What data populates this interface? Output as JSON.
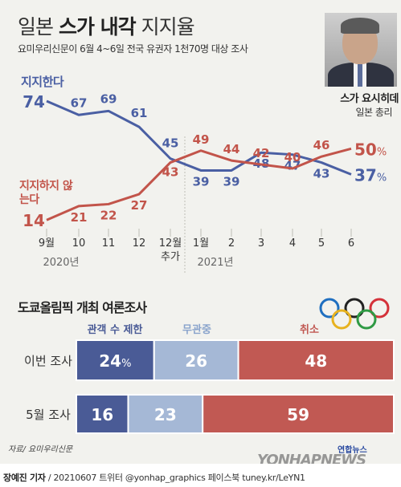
{
  "title": {
    "prefix": "일본",
    "bold": "스가 내각",
    "suffix": "지지율"
  },
  "subtitle": "요미우리신문이 6월 4~6일 전국 유권자 1천70명 대상 조사",
  "person": {
    "name": "스가 요시히데",
    "role": "일본 총리"
  },
  "colors": {
    "support": "#4a5fa3",
    "oppose": "#c2544a",
    "bar_cap": "#4a5b96",
    "bar_none": "#a5b8d6",
    "bar_cancel": "#c15953"
  },
  "chart_data": [
    {
      "type": "line",
      "categories": [
        "9월",
        "10",
        "11",
        "12",
        "12월\n추가",
        "1월",
        "2",
        "3",
        "4",
        "5",
        "6"
      ],
      "year_labels": [
        "2020년",
        "2021년"
      ],
      "series": [
        {
          "name": "지지한다",
          "values": [
            74,
            67,
            69,
            61,
            45,
            39,
            39,
            48,
            47,
            43,
            37
          ]
        },
        {
          "name": "지지하지 않는다",
          "values": [
            14,
            21,
            22,
            27,
            43,
            49,
            44,
            42,
            40,
            46,
            50
          ]
        }
      ],
      "ylim": [
        10,
        80
      ],
      "percent_on_last": true
    },
    {
      "type": "bar",
      "title": "도쿄올림픽 개최 여론조사",
      "stacked": true,
      "categories": [
        "이번 조사",
        "5월 조사"
      ],
      "series": [
        {
          "name": "관객 수 제한",
          "values": [
            24,
            16
          ]
        },
        {
          "name": "무관중",
          "values": [
            26,
            23
          ]
        },
        {
          "name": "취소",
          "values": [
            48,
            59
          ]
        }
      ]
    }
  ],
  "source": "자료/ 요미우리신문",
  "logo": "연합뉴스",
  "watermark": "YONHAPNEWS",
  "footer": {
    "author": "장예진 기자",
    "rest": "/ 20210607 트위터 @yonhap_graphics 페이스북 tuney.kr/LeYN1"
  }
}
